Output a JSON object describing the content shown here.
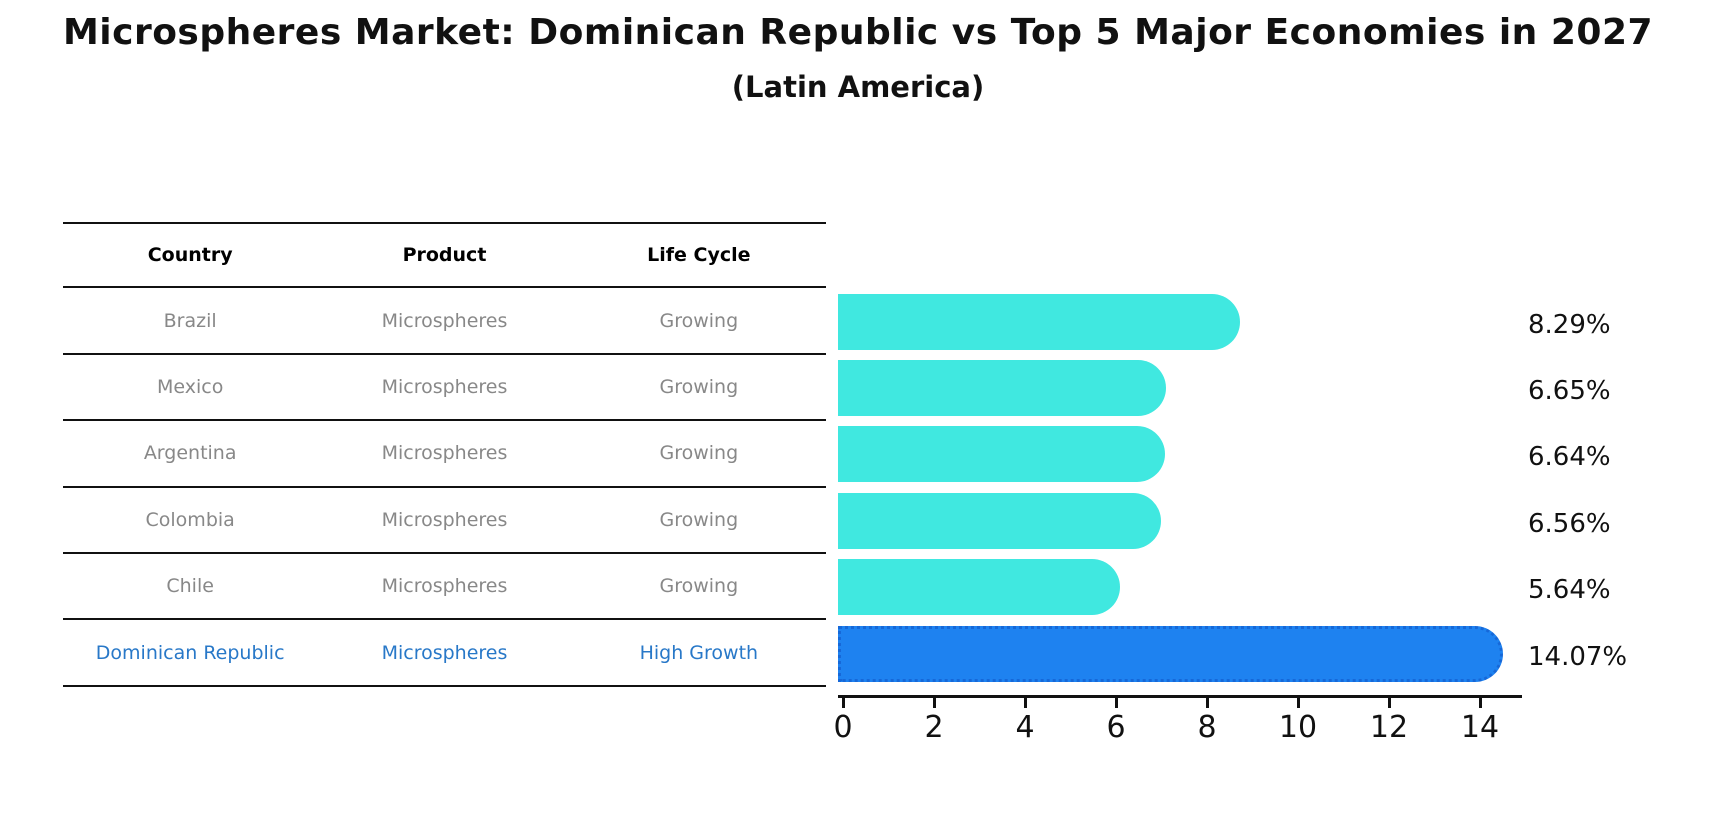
{
  "title": "Microspheres Market: Dominican Republic vs Top 5 Major Economies in 2027",
  "subtitle": "(Latin America)",
  "table": {
    "headers": [
      "Country",
      "Product",
      "Life Cycle"
    ],
    "rows": [
      {
        "country": "Brazil",
        "product": "Microspheres",
        "life_cycle": "Growing",
        "highlight": false
      },
      {
        "country": "Mexico",
        "product": "Microspheres",
        "life_cycle": "Growing",
        "highlight": false
      },
      {
        "country": "Argentina",
        "product": "Microspheres",
        "life_cycle": "Growing",
        "highlight": false
      },
      {
        "country": "Colombia",
        "product": "Microspheres",
        "life_cycle": "Growing",
        "highlight": false
      },
      {
        "country": "Chile",
        "product": "Microspheres",
        "life_cycle": "Growing",
        "highlight": false
      },
      {
        "country": "Dominican Republic",
        "product": "Microspheres",
        "life_cycle": "High Growth",
        "highlight": true
      }
    ]
  },
  "chart_data": {
    "type": "bar",
    "orientation": "horizontal",
    "title": "Microspheres Market: Dominican Republic vs Top 5 Major Economies in 2027 (Latin America)",
    "categories": [
      "Brazil",
      "Mexico",
      "Argentina",
      "Colombia",
      "Chile",
      "Dominican Republic"
    ],
    "values": [
      8.29,
      6.65,
      6.64,
      6.56,
      5.64,
      14.07
    ],
    "value_labels": [
      "8.29%",
      "6.65%",
      "6.64%",
      "6.56%",
      "5.64%",
      "14.07%"
    ],
    "highlight_index": 5,
    "x_ticks": [
      "0",
      "2",
      "4",
      "6",
      "8",
      "10",
      "12",
      "14"
    ],
    "x_tick_values": [
      0,
      2,
      4,
      6,
      8,
      10,
      12,
      14
    ],
    "xlim": [
      0,
      14.9
    ],
    "grid": false,
    "legend": "none"
  },
  "colors": {
    "background": "#ffffff",
    "bar": "#40e8e0",
    "highlight_bar": "#1e82f0",
    "highlight_bar_edge": "#1668d8",
    "table_text": "#888888",
    "highlight_text": "#2878c8",
    "axis": "#111111"
  }
}
